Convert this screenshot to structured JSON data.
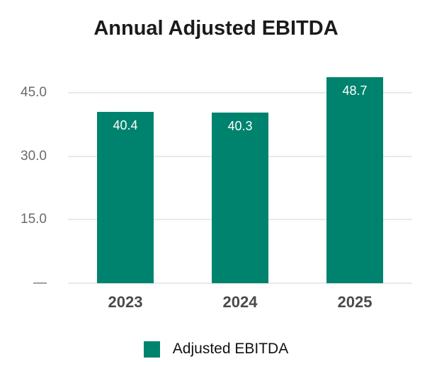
{
  "chart_data": {
    "type": "bar",
    "title": "Annual Adjusted EBITDA",
    "categories": [
      "2023",
      "2024",
      "2025"
    ],
    "series": [
      {
        "name": "Adjusted EBITDA",
        "values": [
          40.4,
          40.3,
          48.7
        ]
      }
    ],
    "data_labels": [
      "40.4",
      "40.3",
      "48.7"
    ],
    "xlabel": "",
    "ylabel": "",
    "ylim": [
      0,
      50
    ],
    "yticks": [
      0,
      15,
      30,
      45
    ],
    "ytick_labels": [
      "—",
      "15.0",
      "30.0",
      "45.0"
    ],
    "grid": true,
    "legend": {
      "position": "bottom",
      "entries": [
        "Adjusted EBITDA"
      ]
    },
    "bar_color": "#00836E",
    "colors": {
      "title_text": "#1b1b1b",
      "ytick_text": "#6a6a6a",
      "xtick_text": "#4a4a4a",
      "bar_label_text": "#ffffff",
      "gridline": "#e9e9e9",
      "legend_text": "#121212"
    }
  }
}
